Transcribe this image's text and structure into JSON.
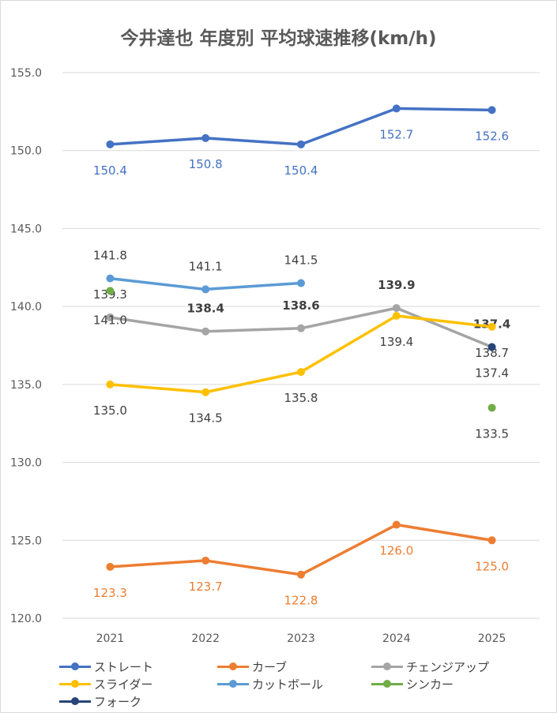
{
  "title": "今井達也 年度別 平均球速推移(km/h)",
  "chart_data": {
    "type": "line",
    "title": "今井達也 年度別 平均球速推移(km/h)",
    "categories": [
      "2021",
      "2022",
      "2023",
      "2024",
      "2025"
    ],
    "ylim": [
      120.0,
      155.0
    ],
    "yticks": [
      "120.0",
      "125.0",
      "130.0",
      "135.0",
      "140.0",
      "145.0",
      "150.0",
      "155.0"
    ],
    "grid": true,
    "legend_position": "bottom",
    "series": [
      {
        "name": "ストレート",
        "color": "#4472c4",
        "values": [
          150.4,
          150.8,
          150.4,
          152.7,
          152.6
        ],
        "labels": [
          "150.4",
          "150.8",
          "150.4",
          "152.7",
          "152.6"
        ]
      },
      {
        "name": "カーブ",
        "color": "#ed7d31",
        "values": [
          123.3,
          123.7,
          122.8,
          126.0,
          125.0
        ],
        "labels": [
          "123.3",
          "123.7",
          "122.8",
          "126.0",
          "125.0"
        ]
      },
      {
        "name": "チェンジアップ",
        "color": "#a5a5a5",
        "values": [
          139.3,
          138.4,
          138.6,
          139.9,
          137.4
        ],
        "labels": [
          "139.3",
          "138.4",
          "138.6",
          "139.9",
          "137.4"
        ]
      },
      {
        "name": "スライダー",
        "color": "#ffc000",
        "values": [
          135.0,
          134.5,
          135.8,
          139.4,
          138.7
        ],
        "labels": [
          "135.0",
          "134.5",
          "135.8",
          "139.4",
          "138.7"
        ]
      },
      {
        "name": "カットボール",
        "color": "#5b9bd5",
        "values": [
          141.8,
          141.1,
          141.5,
          null,
          null
        ],
        "labels": [
          "141.8",
          "141.1",
          "141.5",
          "",
          ""
        ]
      },
      {
        "name": "シンカー",
        "color": "#70ad47",
        "values": [
          141.0,
          null,
          null,
          null,
          133.5
        ],
        "labels": [
          "141.0",
          "",
          "",
          "",
          "133.5"
        ]
      },
      {
        "name": "フォーク",
        "color": "#264478",
        "values": [
          null,
          null,
          null,
          null,
          137.4
        ],
        "labels": [
          "",
          "",
          "",
          "",
          "137.4"
        ]
      }
    ]
  }
}
